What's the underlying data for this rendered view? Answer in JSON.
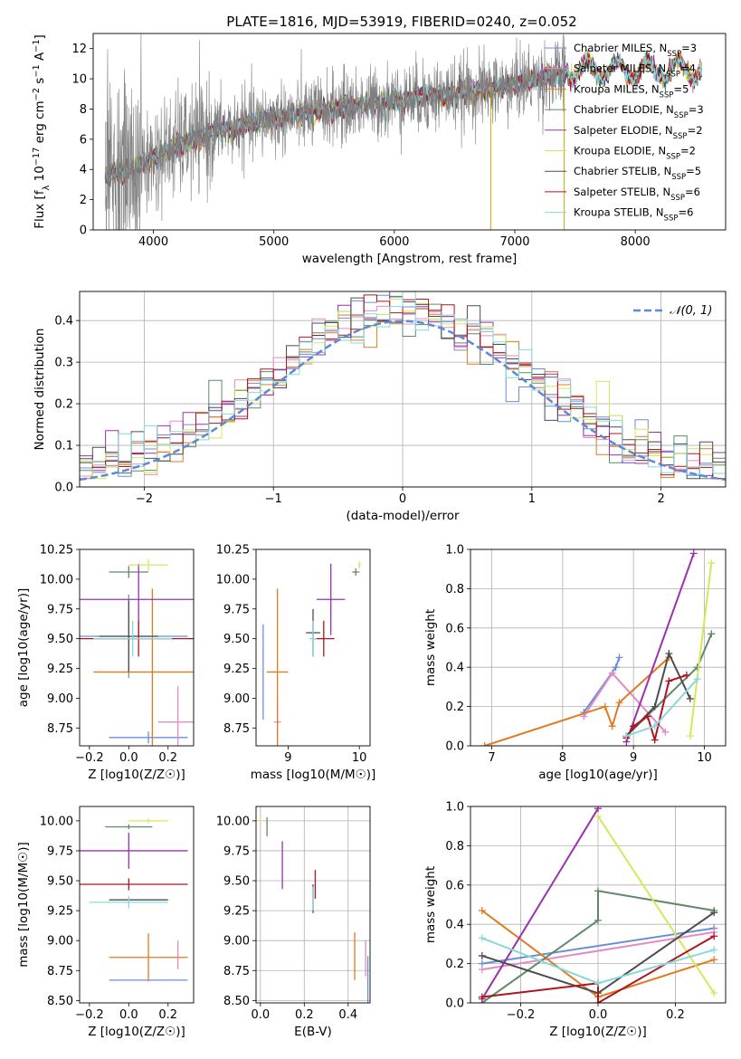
{
  "figure_title": "PLATE=1816, MJD=53919, FIBERID=0240, z=0.052",
  "colors": {
    "Chabrier MILES": "#6b8fd6",
    "Salpeter MILES": "#e38bc5",
    "Kroupa MILES": "#e07b20",
    "Chabrier ELODIE": "#5e8a69",
    "Salpeter ELODIE": "#9b30b0",
    "Kroupa ELODIE": "#d4e85a",
    "Chabrier STELIB": "#4d4d4d",
    "Salpeter STELIB": "#b0151f",
    "Kroupa STELIB": "#86d8dc",
    "data": "#7f7f7f"
  },
  "chart_data": [
    {
      "id": "spectrum",
      "type": "line",
      "title": "PLATE=1816, MJD=53919, FIBERID=0240, z=0.052",
      "xlabel": "wavelength [Angstrom, rest frame]",
      "ylabel": "Flux [f_λ 10^-17 erg cm^-2 s^-1 A^-1]",
      "xlim": [
        3500,
        8750
      ],
      "ylim": [
        0,
        13
      ],
      "xticks": [
        4000,
        5000,
        6000,
        7000,
        8000
      ],
      "yticks": [
        0,
        2,
        4,
        6,
        8,
        10,
        12
      ],
      "grid": false,
      "legend_position": "right",
      "legend": [
        {
          "model": "Chabrier MILES",
          "nssp": "3"
        },
        {
          "model": "Salpeter MILES",
          "nssp": "4"
        },
        {
          "model": "Kroupa MILES",
          "nssp": "5"
        },
        {
          "model": "Chabrier ELODIE",
          "nssp": "3"
        },
        {
          "model": "Salpeter ELODIE",
          "nssp": "2"
        },
        {
          "model": "Kroupa ELODIE",
          "nssp": "2"
        },
        {
          "model": "Chabrier STELIB",
          "nssp": "5"
        },
        {
          "model": "Salpeter STELIB",
          "nssp": "6"
        },
        {
          "model": "Kroupa STELIB",
          "nssp": "6"
        }
      ],
      "continuum": {
        "wavelength": [
          3600,
          3800,
          4000,
          4200,
          4500,
          5000,
          5500,
          6000,
          6500,
          7000,
          7200,
          7400
        ],
        "flux": [
          3.5,
          4.0,
          4.7,
          5.6,
          6.5,
          7.4,
          8.0,
          8.6,
          9.0,
          9.6,
          10.0,
          10.2
        ]
      },
      "model_range": [
        3600,
        8550
      ],
      "data_range": [
        3600,
        7420
      ]
    },
    {
      "id": "residuals",
      "type": "bar",
      "xlabel": "(data-model)/error",
      "ylabel": "Normed distribution",
      "xlim": [
        -2.5,
        2.5
      ],
      "ylim": [
        0,
        0.47
      ],
      "xticks": [
        -2,
        -1,
        0,
        1,
        2
      ],
      "yticks": [
        0.0,
        0.1,
        0.2,
        0.3,
        0.4
      ],
      "grid": true,
      "legend_position": "top-right",
      "reference_curve": "𝒩(0, 1)",
      "bin_width": 0.1
    },
    {
      "id": "age-vs-Z",
      "type": "scatter",
      "xlabel": "Z [log10(Z/Z☉)]",
      "ylabel": "age  [log10(age/yr)]",
      "xlim": [
        -0.25,
        0.33
      ],
      "ylim": [
        8.6,
        10.25
      ],
      "xticks": [
        -0.2,
        0.0,
        0.2
      ],
      "yticks": [
        8.75,
        9.0,
        9.25,
        9.5,
        9.75,
        10.0,
        10.25
      ],
      "points": [
        {
          "model": "Chabrier MILES",
          "x": 0.0,
          "y": 9.52,
          "xerr": 0.3,
          "yerr": 0.35
        },
        {
          "model": "Chabrier MILES",
          "x": 0.1,
          "y": 8.67,
          "xerr": 0.2,
          "yerr": 0.05
        },
        {
          "model": "Salpeter MILES",
          "x": 0.25,
          "y": 8.8,
          "xerr": 0.1,
          "yerr": 0.3
        },
        {
          "model": "Kroupa MILES",
          "x": 0.12,
          "y": 9.22,
          "xerr": 0.3,
          "yerr": 0.7
        },
        {
          "model": "Chabrier ELODIE",
          "x": 0.0,
          "y": 10.06,
          "xerr": 0.1,
          "yerr": 0.05
        },
        {
          "model": "Salpeter ELODIE",
          "x": 0.05,
          "y": 9.83,
          "xerr": 0.3,
          "yerr": 0.3
        },
        {
          "model": "Kroupa ELODIE",
          "x": 0.1,
          "y": 10.12,
          "xerr": 0.1,
          "yerr": 0.05
        },
        {
          "model": "Chabrier STELIB",
          "x": 0.0,
          "y": 9.52,
          "xerr": 0.15,
          "yerr": 0.3
        },
        {
          "model": "Salpeter STELIB",
          "x": 0.05,
          "y": 9.5,
          "xerr": 0.3,
          "yerr": 0.15
        },
        {
          "model": "Kroupa STELIB",
          "x": 0.02,
          "y": 9.5,
          "xerr": 0.2,
          "yerr": 0.15
        }
      ]
    },
    {
      "id": "age-vs-mass",
      "type": "scatter",
      "xlabel": "mass [log10(M/M☉)]",
      "ylabel": "",
      "xlim": [
        8.55,
        10.15
      ],
      "ylim": [
        8.6,
        10.25
      ],
      "xticks": [
        9,
        10
      ],
      "yticks": [
        8.75,
        9.0,
        9.25,
        9.5,
        9.75,
        10.0,
        10.25
      ],
      "points": [
        {
          "model": "Chabrier MILES",
          "x": 8.65,
          "y": 9.22,
          "xerr": 0.0,
          "yerr": 0.4
        },
        {
          "model": "Salpeter MILES",
          "x": 8.85,
          "y": 8.8,
          "xerr": 0.05,
          "yerr": 0.2
        },
        {
          "model": "Kroupa MILES",
          "x": 8.85,
          "y": 9.22,
          "xerr": 0.15,
          "yerr": 0.7
        },
        {
          "model": "Chabrier ELODIE",
          "x": 9.95,
          "y": 10.06,
          "xerr": 0.05,
          "yerr": 0.03
        },
        {
          "model": "Salpeter ELODIE",
          "x": 9.6,
          "y": 9.83,
          "xerr": 0.2,
          "yerr": 0.3
        },
        {
          "model": "Kroupa ELODIE",
          "x": 10.0,
          "y": 10.12,
          "xerr": 0.02,
          "yerr": 0.03
        },
        {
          "model": "Chabrier STELIB",
          "x": 9.35,
          "y": 9.55,
          "xerr": 0.1,
          "yerr": 0.2
        },
        {
          "model": "Salpeter STELIB",
          "x": 9.5,
          "y": 9.5,
          "xerr": 0.15,
          "yerr": 0.15
        },
        {
          "model": "Kroupa STELIB",
          "x": 9.35,
          "y": 9.5,
          "xerr": 0.05,
          "yerr": 0.15
        }
      ]
    },
    {
      "id": "weight-vs-age",
      "type": "line",
      "xlabel": "age  [log10(age/yr)]",
      "ylabel": "mass weight",
      "xlim": [
        6.7,
        10.3
      ],
      "ylim": [
        0,
        1
      ],
      "xticks": [
        7,
        8,
        9,
        10
      ],
      "yticks": [
        0.0,
        0.2,
        0.4,
        0.6,
        0.8,
        1.0
      ],
      "grid": true,
      "series": [
        {
          "model": "Chabrier MILES",
          "x": [
            8.3,
            8.75,
            8.8
          ],
          "y": [
            0.17,
            0.4,
            0.45
          ]
        },
        {
          "model": "Salpeter MILES",
          "x": [
            8.3,
            8.7,
            9.45
          ],
          "y": [
            0.15,
            0.37,
            0.07
          ]
        },
        {
          "model": "Kroupa MILES",
          "x": [
            6.9,
            8.6,
            8.7,
            8.8,
            9.5
          ],
          "y": [
            0.0,
            0.2,
            0.1,
            0.22,
            0.45
          ]
        },
        {
          "model": "Chabrier ELODIE",
          "x": [
            8.9,
            9.9,
            10.1
          ],
          "y": [
            0.05,
            0.4,
            0.57
          ]
        },
        {
          "model": "Salpeter ELODIE",
          "x": [
            8.9,
            9.85
          ],
          "y": [
            0.02,
            0.98
          ]
        },
        {
          "model": "Kroupa ELODIE",
          "x": [
            9.8,
            10.1
          ],
          "y": [
            0.05,
            0.93
          ]
        },
        {
          "model": "Chabrier STELIB",
          "x": [
            8.9,
            9.3,
            9.5,
            9.8
          ],
          "y": [
            0.05,
            0.2,
            0.47,
            0.24
          ]
        },
        {
          "model": "Salpeter STELIB",
          "x": [
            8.9,
            9.0,
            9.2,
            9.3,
            9.5,
            9.75
          ],
          "y": [
            0.04,
            0.1,
            0.15,
            0.03,
            0.33,
            0.36
          ]
        },
        {
          "model": "Kroupa STELIB",
          "x": [
            8.9,
            9.3,
            9.9
          ],
          "y": [
            0.05,
            0.1,
            0.34
          ]
        }
      ]
    },
    {
      "id": "mass-vs-Z",
      "type": "scatter",
      "xlabel": "Z [log10(Z/Z☉)]",
      "ylabel": "mass [log10(M/M☉)]",
      "xlim": [
        -0.25,
        0.33
      ],
      "ylim": [
        8.48,
        10.12
      ],
      "xticks": [
        -0.2,
        0.0,
        0.2
      ],
      "yticks": [
        8.5,
        8.75,
        9.0,
        9.25,
        9.5,
        9.75,
        10.0
      ],
      "points": [
        {
          "model": "Chabrier MILES",
          "x": 0.1,
          "y": 8.67,
          "xerr": 0.2,
          "yerr": 0.0
        },
        {
          "model": "Salpeter MILES",
          "x": 0.25,
          "y": 8.88,
          "xerr": 0.0,
          "yerr": 0.12
        },
        {
          "model": "Kroupa MILES",
          "x": 0.1,
          "y": 8.86,
          "xerr": 0.2,
          "yerr": 0.2
        },
        {
          "model": "Chabrier ELODIE",
          "x": 0.0,
          "y": 9.95,
          "xerr": 0.12,
          "yerr": 0.02
        },
        {
          "model": "Salpeter ELODIE",
          "x": 0.0,
          "y": 9.75,
          "xerr": 0.3,
          "yerr": 0.15
        },
        {
          "model": "Kroupa ELODIE",
          "x": 0.1,
          "y": 10.0,
          "xerr": 0.1,
          "yerr": 0.02
        },
        {
          "model": "Chabrier STELIB",
          "x": 0.05,
          "y": 9.34,
          "xerr": 0.15,
          "yerr": 0.0
        },
        {
          "model": "Salpeter STELIB",
          "x": 0.0,
          "y": 9.47,
          "xerr": 0.3,
          "yerr": 0.05
        },
        {
          "model": "Kroupa STELIB",
          "x": 0.0,
          "y": 9.32,
          "xerr": 0.2,
          "yerr": 0.05
        }
      ]
    },
    {
      "id": "mass-vs-EBV",
      "type": "scatter",
      "xlabel": "E(B-V)",
      "ylabel": "",
      "xlim": [
        -0.02,
        0.5
      ],
      "ylim": [
        8.48,
        10.12
      ],
      "xticks": [
        0.0,
        0.2,
        0.4
      ],
      "yticks": [
        8.5,
        8.75,
        9.0,
        9.25,
        9.5,
        9.75,
        10.0
      ],
      "grid": true,
      "points": [
        {
          "model": "Chabrier MILES",
          "x": 0.49,
          "y": 8.67,
          "yerr": 0.2
        },
        {
          "model": "Salpeter MILES",
          "x": 0.48,
          "y": 8.85,
          "yerr": 0.15
        },
        {
          "model": "Kroupa MILES",
          "x": 0.43,
          "y": 8.87,
          "yerr": 0.2
        },
        {
          "model": "Chabrier ELODIE",
          "x": 0.03,
          "y": 9.95,
          "yerr": 0.08
        },
        {
          "model": "Salpeter ELODIE",
          "x": 0.1,
          "y": 9.63,
          "yerr": 0.2
        },
        {
          "model": "Kroupa ELODIE",
          "x": 0.0,
          "y": 10.0,
          "yerr": 0.05
        },
        {
          "model": "Chabrier STELIB",
          "x": 0.24,
          "y": 9.35,
          "yerr": 0.12
        },
        {
          "model": "Salpeter STELIB",
          "x": 0.25,
          "y": 9.47,
          "yerr": 0.12
        },
        {
          "model": "Kroupa STELIB",
          "x": 0.24,
          "y": 9.35,
          "yerr": 0.1
        }
      ]
    },
    {
      "id": "weight-vs-Z",
      "type": "line",
      "xlabel": "Z [log10(Z/Z☉)]",
      "ylabel": "mass weight",
      "xlim": [
        -0.33,
        0.33
      ],
      "ylim": [
        0,
        1
      ],
      "xticks": [
        -0.2,
        0.0,
        0.2
      ],
      "yticks": [
        0.0,
        0.2,
        0.4,
        0.6,
        0.8,
        1.0
      ],
      "grid": true,
      "series": [
        {
          "model": "Chabrier MILES",
          "x": [
            -0.3,
            0.3
          ],
          "y": [
            0.2,
            0.38
          ]
        },
        {
          "model": "Salpeter MILES",
          "x": [
            -0.3,
            0.3
          ],
          "y": [
            0.17,
            0.36
          ]
        },
        {
          "model": "Kroupa MILES",
          "x": [
            -0.3,
            0.0,
            0.3
          ],
          "y": [
            0.47,
            0.03,
            0.22
          ]
        },
        {
          "model": "Chabrier ELODIE",
          "x": [
            -0.3,
            0.0,
            0.0,
            0.3
          ],
          "y": [
            0.0,
            0.42,
            0.57,
            0.47
          ]
        },
        {
          "model": "Salpeter ELODIE",
          "x": [
            -0.3,
            0.0
          ],
          "y": [
            0.02,
            0.99
          ]
        },
        {
          "model": "Kroupa ELODIE",
          "x": [
            0.0,
            0.3
          ],
          "y": [
            0.95,
            0.05
          ]
        },
        {
          "model": "Chabrier STELIB",
          "x": [
            -0.3,
            0.0,
            0.3
          ],
          "y": [
            0.24,
            0.05,
            0.46
          ]
        },
        {
          "model": "Salpeter STELIB",
          "x": [
            -0.3,
            0.0,
            0.0,
            0.3
          ],
          "y": [
            0.03,
            0.1,
            0.0,
            0.34
          ]
        },
        {
          "model": "Kroupa STELIB",
          "x": [
            -0.3,
            0.0,
            0.3
          ],
          "y": [
            0.33,
            0.1,
            0.27
          ]
        }
      ]
    }
  ]
}
